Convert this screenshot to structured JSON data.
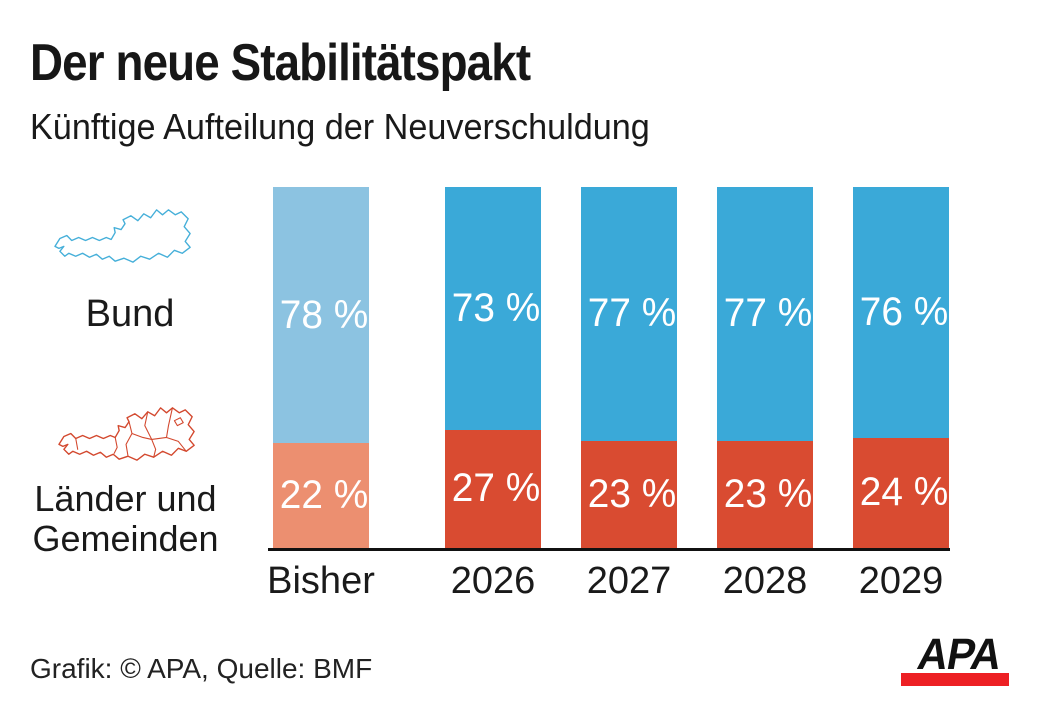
{
  "header": {
    "title": "Der neue Stabilitätspakt",
    "subtitle": "Künftige Aufteilung der Neuverschuldung"
  },
  "legend": {
    "bund_label": "Bund",
    "laender_label_line1": "Länder und",
    "laender_label_line2": "Gemeinden"
  },
  "chart_data": {
    "type": "bar",
    "stacked": true,
    "title": "Der neue Stabilitätspakt",
    "subtitle": "Künftige Aufteilung der Neuverschuldung",
    "categories": [
      "Bisher",
      "2026",
      "2027",
      "2028",
      "2029"
    ],
    "series": [
      {
        "name": "Bund",
        "values": [
          78,
          73,
          77,
          77,
          76
        ],
        "color": "#3AA9D8",
        "color_first_bar": "#8CC3E1"
      },
      {
        "name": "Länder und Gemeinden",
        "values": [
          22,
          27,
          23,
          23,
          24
        ],
        "color": "#D94B31",
        "color_first_bar": "#EC8F70"
      }
    ],
    "value_label_suffix": " %",
    "value_labels": {
      "Bund": [
        "78 %",
        "73 %",
        "77 %",
        "77 %",
        "76 %"
      ],
      "Länder und Gemeinden": [
        "22 %",
        "27 %",
        "23 %",
        "23 %",
        "24 %"
      ]
    },
    "ylim": [
      0,
      100
    ],
    "grid": false,
    "legend_position": "left",
    "note_on_style": "first category (Bisher) uses lighter shades of the series colors"
  },
  "footer": {
    "credit": "Grafik: © APA, Quelle: BMF",
    "logo_text": "APA"
  },
  "colors": {
    "bund_blue": "#3AA9D8",
    "bund_blue_light": "#8CC3E1",
    "laender_red": "#D94B31",
    "laender_red_light": "#EC8F70",
    "map_blue_outline": "#45AFD9",
    "map_red_outline": "#D3482E",
    "axis_black": "#111111",
    "apa_logo_red": "#ED2024",
    "value_label_white": "#FFFFFF"
  }
}
